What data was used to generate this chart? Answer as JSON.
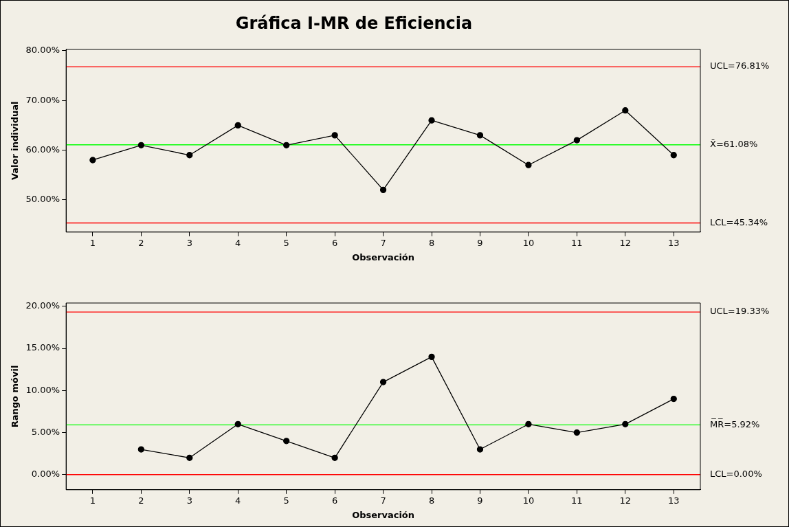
{
  "chart_data": [
    {
      "type": "line",
      "title": "Gráfica I-MR de Eficiencia",
      "xlabel": "Observación",
      "ylabel": "Valor individual",
      "x": [
        1,
        2,
        3,
        4,
        5,
        6,
        7,
        8,
        9,
        10,
        11,
        12,
        13
      ],
      "series": [
        {
          "color": "#000000",
          "values": [
            58,
            61,
            59,
            65,
            61,
            63,
            52,
            66,
            63,
            57,
            62,
            68,
            59
          ]
        }
      ],
      "xlim": [
        0.45,
        13.55
      ],
      "xticks": [
        1,
        2,
        3,
        4,
        5,
        6,
        7,
        8,
        9,
        10,
        11,
        12,
        13
      ],
      "ylim": [
        43.5,
        80.3
      ],
      "yticks": [
        {
          "value": 50,
          "label": "50.00%"
        },
        {
          "value": 60,
          "label": "60.00%"
        },
        {
          "value": 70,
          "label": "70.00%"
        },
        {
          "value": 80,
          "label": "80.00%"
        }
      ],
      "ref_lines": [
        {
          "axis": "y",
          "value": 76.81,
          "label": "UCL=76.81%",
          "color": "#ff0000"
        },
        {
          "axis": "y",
          "value": 61.08,
          "label": "X̄=61.08%",
          "color": "#00ff00"
        },
        {
          "axis": "y",
          "value": 45.34,
          "label": "LCL=45.34%",
          "color": "#ff0000"
        }
      ],
      "marker": "circle",
      "line_style": "solid",
      "grid": false,
      "legend": false
    },
    {
      "type": "line",
      "xlabel": "Observación",
      "ylabel": "Rango móvil",
      "series": [
        {
          "color": "#000000",
          "x": [
            2,
            3,
            4,
            5,
            6,
            7,
            8,
            9,
            10,
            11,
            12,
            13
          ],
          "values": [
            3,
            2,
            6,
            4,
            2,
            11,
            14,
            3,
            6,
            5,
            6,
            9
          ]
        }
      ],
      "xlim": [
        0.45,
        13.55
      ],
      "xticks": [
        1,
        2,
        3,
        4,
        5,
        6,
        7,
        8,
        9,
        10,
        11,
        12,
        13
      ],
      "ylim": [
        -1.8,
        20.4
      ],
      "yticks": [
        {
          "value": 0,
          "label": "0.00%"
        },
        {
          "value": 5,
          "label": "5.00%"
        },
        {
          "value": 10,
          "label": "10.00%"
        },
        {
          "value": 15,
          "label": "15.00%"
        },
        {
          "value": 20,
          "label": "20.00%"
        }
      ],
      "ref_lines": [
        {
          "axis": "y",
          "value": 19.33,
          "label": "UCL=19.33%",
          "color": "#ff0000"
        },
        {
          "axis": "y",
          "value": 5.92,
          "label": "M̅R̅=5.92%",
          "color": "#00ff00"
        },
        {
          "axis": "y",
          "value": 0,
          "label": "LCL=0.00%",
          "color": "#ff0000"
        }
      ],
      "marker": "circle",
      "line_style": "solid",
      "grid": false,
      "legend": false
    }
  ]
}
